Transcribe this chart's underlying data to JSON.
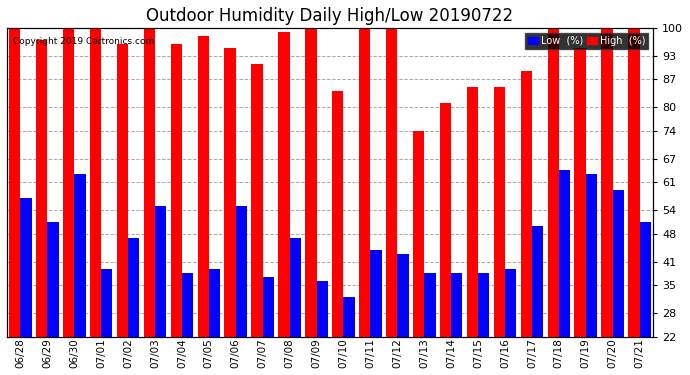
{
  "title": "Outdoor Humidity Daily High/Low 20190722",
  "copyright": "Copyright 2019 Cartronics.com",
  "categories": [
    "06/28",
    "06/29",
    "06/30",
    "07/01",
    "07/02",
    "07/03",
    "07/04",
    "07/05",
    "07/06",
    "07/07",
    "07/08",
    "07/09",
    "07/10",
    "07/11",
    "07/12",
    "07/13",
    "07/14",
    "07/15",
    "07/16",
    "07/17",
    "07/18",
    "07/19",
    "07/20",
    "07/21"
  ],
  "high_values": [
    100,
    97,
    100,
    100,
    96,
    100,
    96,
    98,
    95,
    91,
    99,
    100,
    84,
    100,
    100,
    74,
    81,
    85,
    85,
    89,
    100,
    95,
    100,
    100
  ],
  "low_values": [
    57,
    51,
    63,
    39,
    47,
    55,
    38,
    39,
    55,
    37,
    47,
    36,
    32,
    44,
    43,
    38,
    38,
    38,
    39,
    50,
    64,
    63,
    59,
    51
  ],
  "high_color": "#ff0000",
  "low_color": "#0000ff",
  "bg_color": "#ffffff",
  "plot_bg_color": "#ffffff",
  "grid_color": "#aaaaaa",
  "title_fontsize": 12,
  "ylim_min": 22,
  "ylim_max": 100,
  "yticks": [
    22,
    28,
    35,
    41,
    48,
    54,
    61,
    67,
    74,
    80,
    87,
    93,
    100
  ],
  "bar_width": 0.42,
  "legend_low_label": "Low  (%)",
  "legend_high_label": "High  (%)"
}
